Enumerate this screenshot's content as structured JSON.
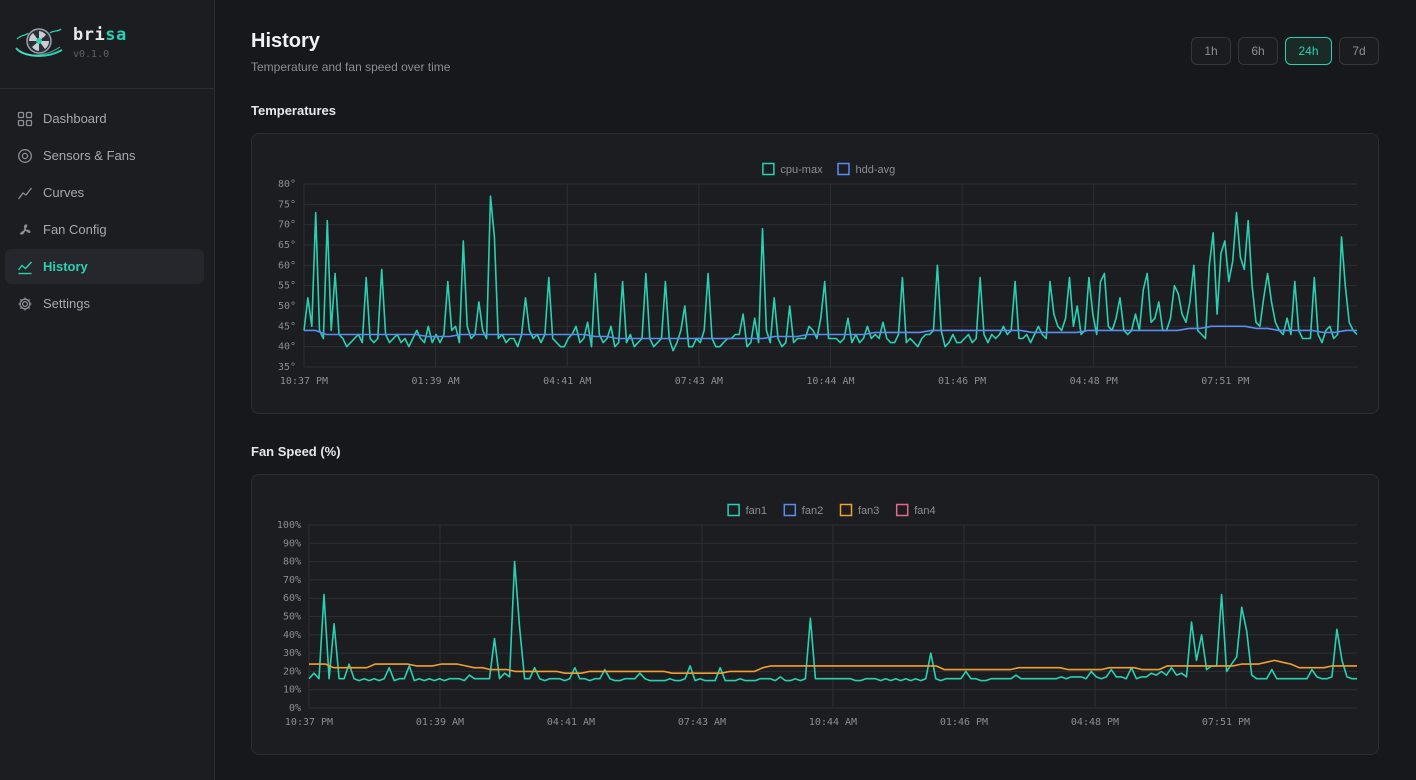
{
  "app": {
    "name_prefix": "bri",
    "name_accent": "sa",
    "version": "v0.1.0",
    "accent_color": "#2ad1b1"
  },
  "sidebar": {
    "items": [
      {
        "label": "Dashboard",
        "icon": "grid-icon",
        "active": false
      },
      {
        "label": "Sensors & Fans",
        "icon": "sensor-icon",
        "active": false
      },
      {
        "label": "Curves",
        "icon": "curve-icon",
        "active": false
      },
      {
        "label": "Fan Config",
        "icon": "fan-icon",
        "active": false
      },
      {
        "label": "History",
        "icon": "history-chart-icon",
        "active": true
      },
      {
        "label": "Settings",
        "icon": "gear-icon",
        "active": false
      }
    ]
  },
  "header": {
    "title": "History",
    "subtitle": "Temperature and fan speed over time",
    "ranges": [
      "1h",
      "6h",
      "24h",
      "7d"
    ],
    "selected_range": "24h"
  },
  "sections": {
    "temperatures": "Temperatures",
    "fan_speed": "Fan Speed (%)"
  },
  "chart_data": [
    {
      "type": "line",
      "title": "Temperatures",
      "xlabel": "",
      "ylabel": "",
      "x_ticks": [
        "10:37 PM",
        "01:39 AM",
        "04:41 AM",
        "07:43 AM",
        "10:44 AM",
        "01:46 PM",
        "04:48 PM",
        "07:51 PM"
      ],
      "y_ticks": [
        "80°",
        "75°",
        "70°",
        "65°",
        "60°",
        "55°",
        "50°",
        "45°",
        "40°",
        "35°"
      ],
      "ylim": [
        35,
        80
      ],
      "grid": true,
      "legend_position": "top-center",
      "series": [
        {
          "name": "cpu-max",
          "color": "#2ad1b1",
          "values": [
            44,
            52,
            45,
            73,
            44,
            42,
            71,
            44,
            58,
            43,
            42,
            40,
            41,
            42,
            43,
            41,
            57,
            42,
            41,
            42,
            59,
            43,
            41,
            42,
            43,
            41,
            42,
            40,
            42,
            44,
            42,
            41,
            45,
            41,
            43,
            41,
            43,
            56,
            44,
            45,
            41,
            66,
            45,
            42,
            43,
            51,
            44,
            42,
            77,
            67,
            42,
            43,
            41,
            42,
            42,
            40,
            43,
            52,
            44,
            42,
            43,
            41,
            43,
            57,
            42,
            41,
            40,
            40,
            42,
            43,
            45,
            41,
            42,
            46,
            40,
            58,
            43,
            41,
            42,
            45,
            40,
            41,
            56,
            41,
            43,
            40,
            41,
            42,
            58,
            42,
            40,
            41,
            42,
            56,
            42,
            39,
            41,
            44,
            50,
            40,
            40,
            42,
            41,
            44,
            58,
            42,
            40,
            40,
            41,
            42,
            42,
            43,
            43,
            48,
            40,
            41,
            47,
            41,
            69,
            44,
            41,
            52,
            42,
            40,
            41,
            50,
            41,
            42,
            42,
            42,
            45,
            44,
            42,
            47,
            56,
            42,
            42,
            42,
            41,
            42,
            47,
            41,
            43,
            41,
            42,
            45,
            42,
            43,
            42,
            46,
            42,
            41,
            41,
            43,
            57,
            41,
            42,
            41,
            40,
            42,
            43,
            43,
            44,
            60,
            44,
            40,
            41,
            43,
            41,
            41,
            42,
            43,
            41,
            42,
            57,
            43,
            41,
            43,
            42,
            43,
            45,
            43,
            44,
            56,
            42,
            42,
            43,
            41,
            43,
            45,
            43,
            42,
            56,
            48,
            45,
            44,
            47,
            57,
            45,
            50,
            43,
            44,
            57,
            48,
            43,
            56,
            58,
            45,
            44,
            47,
            52,
            44,
            43,
            44,
            48,
            44,
            54,
            58,
            46,
            47,
            51,
            44,
            44,
            47,
            55,
            53,
            48,
            46,
            51,
            60,
            44,
            43,
            42,
            60,
            68,
            48,
            63,
            66,
            56,
            61,
            73,
            62,
            59,
            71,
            55,
            46,
            45,
            52,
            58,
            51,
            46,
            44,
            43,
            47,
            43,
            56,
            44,
            42,
            42,
            42,
            57,
            43,
            41,
            44,
            45,
            42,
            43,
            67,
            55,
            46,
            44,
            43
          ]
        },
        {
          "name": "hdd-avg",
          "color": "#5b8def",
          "values": [
            44,
            44,
            43,
            43,
            43,
            43,
            43,
            43,
            43,
            43,
            43,
            42.5,
            42.5,
            42.5,
            43,
            43,
            43,
            43,
            43,
            43,
            43,
            43,
            43,
            43,
            43,
            43,
            42.5,
            42.5,
            42,
            42,
            42,
            42,
            42,
            42,
            42,
            42,
            42,
            42,
            42,
            42,
            42,
            42,
            42.5,
            42.5,
            42.5,
            43,
            43,
            43,
            43,
            43,
            43,
            43.5,
            43.5,
            43.5,
            43.5,
            43.5,
            44,
            44,
            44,
            44,
            44,
            44,
            44,
            44,
            44,
            43.5,
            43.5,
            43.5,
            43.5,
            43.5,
            44,
            44,
            44,
            44,
            44,
            44,
            44,
            44,
            44,
            44.5,
            44.5,
            45,
            45,
            45,
            45,
            44.5,
            44.5,
            44,
            44,
            44,
            44,
            43.5,
            43.5,
            44,
            44
          ]
        }
      ]
    },
    {
      "type": "line",
      "title": "Fan Speed (%)",
      "xlabel": "",
      "ylabel": "",
      "x_ticks": [
        "10:37 PM",
        "01:39 AM",
        "04:41 AM",
        "07:43 AM",
        "10:44 AM",
        "01:46 PM",
        "04:48 PM",
        "07:51 PM"
      ],
      "y_ticks": [
        "100%",
        "90%",
        "80%",
        "70%",
        "60%",
        "50%",
        "40%",
        "30%",
        "20%",
        "10%",
        "0%"
      ],
      "ylim": [
        0,
        100
      ],
      "grid": true,
      "legend_position": "top-center",
      "series": [
        {
          "name": "fan1",
          "color": "#2ad1b1",
          "values": [
            16,
            19,
            16,
            62,
            16,
            46,
            16,
            16,
            24,
            16,
            15,
            16,
            15,
            16,
            15,
            16,
            22,
            15,
            16,
            16,
            23,
            15,
            16,
            15,
            16,
            15,
            16,
            15,
            16,
            16,
            16,
            15,
            18,
            16,
            16,
            16,
            16,
            38,
            16,
            19,
            17,
            80,
            44,
            16,
            16,
            22,
            16,
            15,
            16,
            16,
            16,
            15,
            16,
            22,
            16,
            16,
            15,
            16,
            16,
            21,
            16,
            15,
            15,
            16,
            16,
            16,
            19,
            16,
            15,
            15,
            15,
            15,
            16,
            15,
            15,
            16,
            23,
            15,
            16,
            15,
            15,
            15,
            22,
            15,
            15,
            15,
            16,
            15,
            15,
            15,
            16,
            16,
            16,
            15,
            17,
            15,
            15,
            16,
            15,
            16,
            49,
            16,
            16,
            16,
            16,
            16,
            16,
            16,
            16,
            15,
            15,
            16,
            16,
            16,
            15,
            16,
            15,
            16,
            15,
            16,
            15,
            16,
            15,
            16,
            30,
            16,
            15,
            16,
            16,
            16,
            16,
            20,
            16,
            16,
            15,
            15,
            16,
            16,
            16,
            16,
            16,
            18,
            16,
            16,
            16,
            16,
            16,
            16,
            16,
            16,
            17,
            16,
            17,
            17,
            17,
            16,
            20,
            17,
            16,
            17,
            21,
            17,
            17,
            16,
            22,
            16,
            17,
            17,
            19,
            18,
            20,
            18,
            22,
            18,
            19,
            17,
            47,
            26,
            40,
            21,
            23,
            23,
            62,
            20,
            24,
            28,
            55,
            42,
            18,
            16,
            16,
            16,
            21,
            16,
            16,
            16,
            16,
            16,
            16,
            16,
            21,
            17,
            16,
            16,
            17,
            43,
            26,
            17,
            16,
            16
          ]
        },
        {
          "name": "fan2",
          "color": "#5b8def",
          "values": []
        },
        {
          "name": "fan3",
          "color": "#f0a030",
          "values": [
            24,
            24,
            24,
            22,
            22,
            22,
            22,
            22,
            24,
            24,
            24,
            24,
            24,
            23,
            23,
            23,
            24,
            24,
            24,
            23,
            22,
            22,
            21,
            21,
            21,
            20,
            20,
            20,
            20,
            20,
            20,
            19,
            19,
            19,
            20,
            20,
            20,
            20,
            20,
            20,
            20,
            20,
            20,
            20,
            19,
            19,
            19,
            19,
            19,
            19,
            19,
            20,
            20,
            20,
            20,
            22,
            23,
            23,
            23,
            23,
            23,
            23,
            23,
            23,
            23,
            23,
            23,
            23,
            23,
            23,
            23,
            23,
            23,
            23,
            23,
            23,
            23,
            21,
            21,
            21,
            21,
            21,
            21,
            21,
            21,
            21,
            22,
            22,
            22,
            22,
            22,
            22,
            21,
            21,
            21,
            21,
            21,
            22,
            22,
            22,
            22,
            21,
            21,
            21,
            23,
            23,
            23,
            23,
            23,
            23,
            23,
            23,
            23,
            24,
            24,
            24,
            25,
            26,
            25,
            24,
            22,
            22,
            22,
            22,
            23,
            23,
            23,
            23
          ]
        },
        {
          "name": "fan4",
          "color": "#e5688f",
          "values": []
        }
      ]
    }
  ]
}
